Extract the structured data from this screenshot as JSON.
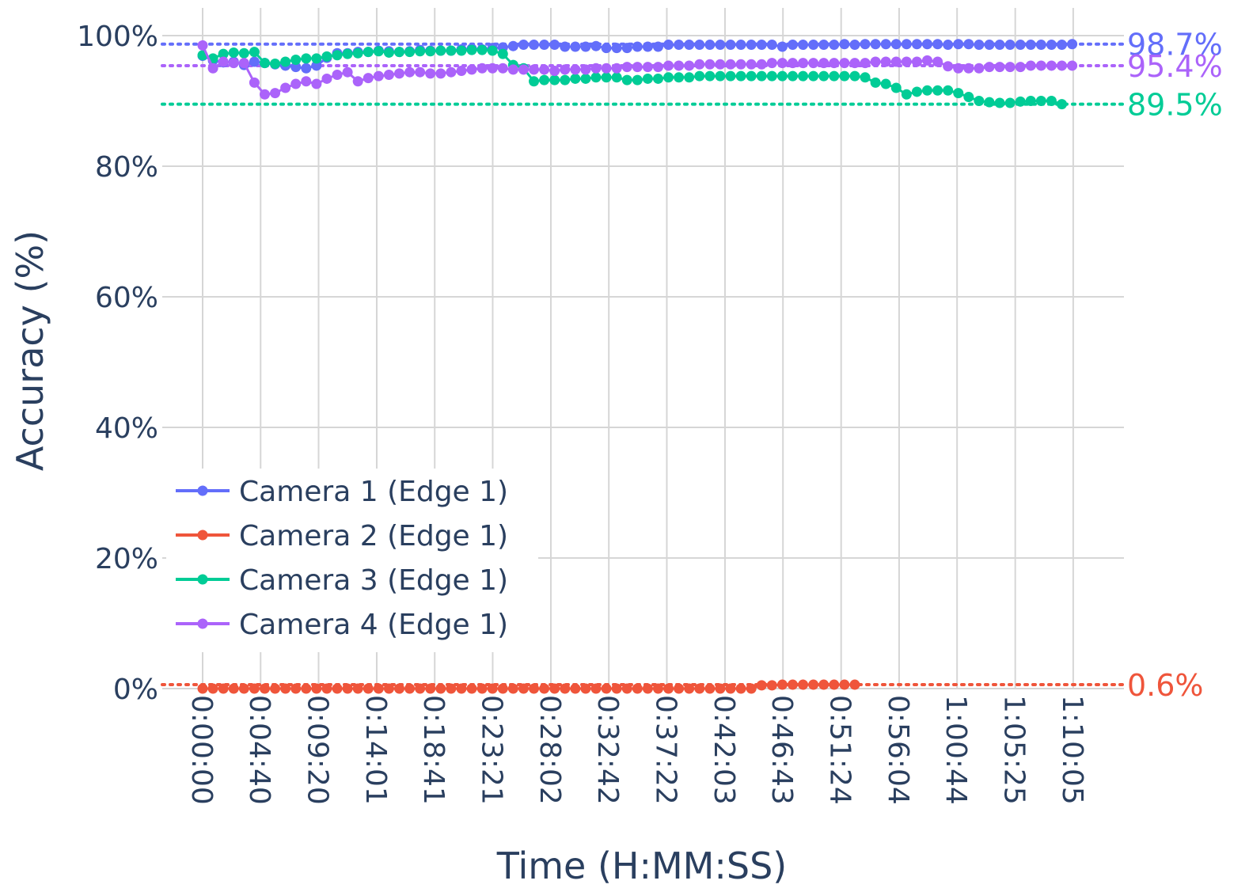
{
  "chart_data": {
    "type": "line",
    "title": "",
    "xlabel": "Time (H:MM:SS)",
    "ylabel": "Accuracy (%)",
    "ylim": [
      0,
      100
    ],
    "xlim_seconds": [
      -195,
      4450
    ],
    "y_ticks": [
      {
        "value": 0,
        "label": "0%"
      },
      {
        "value": 20,
        "label": "20%"
      },
      {
        "value": 40,
        "label": "40%"
      },
      {
        "value": 60,
        "label": "60%"
      },
      {
        "value": 80,
        "label": "80%"
      },
      {
        "value": 100,
        "label": "100%"
      }
    ],
    "x_ticks": [
      "0:00:00",
      "0:04:40",
      "0:09:20",
      "0:14:01",
      "0:18:41",
      "0:23:21",
      "0:28:02",
      "0:32:42",
      "0:37:22",
      "0:42:03",
      "0:46:43",
      "0:51:24",
      "0:56:04",
      "1:00:44",
      "1:05:25",
      "1:10:05"
    ],
    "grid": true,
    "legend_position": "lower-left",
    "series": [
      {
        "name": "Camera 1 (Edge 1)",
        "color": "#636efa",
        "final_label": "98.7%",
        "final_value": 98.7,
        "x": [
          "0:00:00",
          "0:00:50",
          "0:01:40",
          "0:02:30",
          "0:03:20",
          "0:04:10",
          "0:05:00",
          "0:05:50",
          "0:06:40",
          "0:07:30",
          "0:08:20",
          "0:09:10",
          "0:10:00",
          "0:10:50",
          "0:11:40",
          "0:12:30",
          "0:13:20",
          "0:14:10",
          "0:15:00",
          "0:15:50",
          "0:16:40",
          "0:17:30",
          "0:18:20",
          "0:19:10",
          "0:20:00",
          "0:20:50",
          "0:21:40",
          "0:22:30",
          "0:23:20",
          "0:24:10",
          "0:25:00",
          "0:25:50",
          "0:26:40",
          "0:27:30",
          "0:28:20",
          "0:29:10",
          "0:30:00",
          "0:30:50",
          "0:31:40",
          "0:32:30",
          "0:33:20",
          "0:34:10",
          "0:35:00",
          "0:35:50",
          "0:36:40",
          "0:37:30",
          "0:38:20",
          "0:39:10",
          "0:40:00",
          "0:40:50",
          "0:41:40",
          "0:42:30",
          "0:43:20",
          "0:44:10",
          "0:45:00",
          "0:45:50",
          "0:46:40",
          "0:47:30",
          "0:48:20",
          "0:49:10",
          "0:50:00",
          "0:50:50",
          "0:51:40",
          "0:52:30",
          "0:53:20",
          "0:54:10",
          "0:55:00",
          "0:55:50",
          "0:56:40",
          "0:57:30",
          "0:58:20",
          "0:59:10",
          "1:00:00",
          "1:00:50",
          "1:01:40",
          "1:02:30",
          "1:03:20",
          "1:04:10",
          "1:05:00",
          "1:05:50",
          "1:06:40",
          "1:07:30",
          "1:08:20",
          "1:09:10",
          "1:10:00"
        ],
        "values": [
          96.9,
          96.2,
          95.9,
          96.0,
          95.5,
          96.0,
          95.8,
          95.6,
          95.4,
          95.2,
          95.0,
          95.4,
          96.6,
          97.3,
          97.3,
          97.5,
          97.5,
          97.7,
          97.6,
          97.5,
          97.6,
          97.8,
          97.7,
          97.7,
          97.7,
          97.9,
          98.0,
          97.9,
          98.1,
          98.2,
          98.4,
          98.6,
          98.6,
          98.6,
          98.6,
          98.3,
          98.3,
          98.3,
          98.4,
          98.1,
          98.1,
          98.1,
          98.3,
          98.3,
          98.3,
          98.6,
          98.6,
          98.6,
          98.6,
          98.6,
          98.6,
          98.6,
          98.6,
          98.6,
          98.6,
          98.6,
          98.3,
          98.6,
          98.6,
          98.6,
          98.6,
          98.6,
          98.7,
          98.6,
          98.7,
          98.7,
          98.7,
          98.7,
          98.7,
          98.7,
          98.7,
          98.7,
          98.6,
          98.7,
          98.7,
          98.6,
          98.6,
          98.6,
          98.6,
          98.6,
          98.6,
          98.6,
          98.6,
          98.6,
          98.7
        ]
      },
      {
        "name": "Camera 2 (Edge 1)",
        "color": "#ef553b",
        "final_label": "0.6%",
        "final_value": 0.6,
        "x": [
          "0:00:00",
          "0:00:50",
          "0:01:40",
          "0:02:30",
          "0:03:20",
          "0:04:10",
          "0:05:00",
          "0:05:50",
          "0:06:40",
          "0:07:30",
          "0:08:20",
          "0:09:10",
          "0:10:00",
          "0:10:50",
          "0:11:40",
          "0:12:30",
          "0:13:20",
          "0:14:10",
          "0:15:00",
          "0:15:50",
          "0:16:40",
          "0:17:30",
          "0:18:20",
          "0:19:10",
          "0:20:00",
          "0:20:50",
          "0:21:40",
          "0:22:30",
          "0:23:20",
          "0:24:10",
          "0:25:00",
          "0:25:50",
          "0:26:40",
          "0:27:30",
          "0:28:20",
          "0:29:10",
          "0:30:00",
          "0:30:50",
          "0:31:40",
          "0:32:30",
          "0:33:20",
          "0:34:10",
          "0:35:00",
          "0:35:50",
          "0:36:40",
          "0:37:30",
          "0:38:20",
          "0:39:10",
          "0:40:00",
          "0:40:50",
          "0:41:40",
          "0:42:30",
          "0:43:20",
          "0:44:10",
          "0:45:00",
          "0:45:50",
          "0:46:40",
          "0:47:30",
          "0:48:20",
          "0:49:10",
          "0:50:00",
          "0:50:50",
          "0:51:40",
          "0:52:30"
        ],
        "values": [
          0,
          0,
          0,
          0,
          0,
          0,
          0,
          0,
          0,
          0,
          0,
          0,
          0,
          0,
          0,
          0,
          0,
          0,
          0,
          0,
          0,
          0,
          0,
          0,
          0,
          0,
          0,
          0,
          0,
          0,
          0,
          0,
          0,
          0,
          0,
          0,
          0,
          0,
          0,
          0,
          0,
          0,
          0,
          0,
          0,
          0,
          0,
          0,
          0,
          0,
          0,
          0,
          0,
          0,
          0.5,
          0.5,
          0.6,
          0.6,
          0.6,
          0.6,
          0.6,
          0.6,
          0.6,
          0.6
        ]
      },
      {
        "name": "Camera 3 (Edge 1)",
        "color": "#00cc96",
        "final_label": "89.5%",
        "final_value": 89.5,
        "x": [
          "0:00:00",
          "0:00:50",
          "0:01:40",
          "0:02:30",
          "0:03:20",
          "0:04:10",
          "0:05:00",
          "0:05:50",
          "0:06:40",
          "0:07:30",
          "0:08:20",
          "0:09:10",
          "0:10:00",
          "0:10:50",
          "0:11:40",
          "0:12:30",
          "0:13:20",
          "0:14:10",
          "0:15:00",
          "0:15:50",
          "0:16:40",
          "0:17:30",
          "0:18:20",
          "0:19:10",
          "0:20:00",
          "0:20:50",
          "0:21:40",
          "0:22:30",
          "0:23:20",
          "0:24:10",
          "0:25:00",
          "0:25:50",
          "0:26:40",
          "0:27:30",
          "0:28:20",
          "0:29:10",
          "0:30:00",
          "0:30:50",
          "0:31:40",
          "0:32:30",
          "0:33:20",
          "0:34:10",
          "0:35:00",
          "0:35:50",
          "0:36:40",
          "0:37:30",
          "0:38:20",
          "0:39:10",
          "0:40:00",
          "0:40:50",
          "0:41:40",
          "0:42:30",
          "0:43:20",
          "0:44:10",
          "0:45:00",
          "0:45:50",
          "0:46:40",
          "0:47:30",
          "0:48:20",
          "0:49:10",
          "0:50:00",
          "0:50:50",
          "0:51:40",
          "0:52:30",
          "0:53:20",
          "0:54:10",
          "0:55:00",
          "0:55:50",
          "0:56:40",
          "0:57:30",
          "0:58:20",
          "0:59:10",
          "1:00:00",
          "1:00:50",
          "1:01:40",
          "1:02:30",
          "1:03:20",
          "1:04:10",
          "1:05:00",
          "1:05:50",
          "1:06:40",
          "1:07:30",
          "1:08:20",
          "1:09:10"
        ],
        "values": [
          97.0,
          96.5,
          97.2,
          97.4,
          97.3,
          97.5,
          95.8,
          95.7,
          96.0,
          96.3,
          96.5,
          96.5,
          96.8,
          97.0,
          97.2,
          97.3,
          97.5,
          97.6,
          97.4,
          97.5,
          97.5,
          97.6,
          97.6,
          97.7,
          97.7,
          97.7,
          97.8,
          97.8,
          97.7,
          97.2,
          95.5,
          95.0,
          93.0,
          93.2,
          93.2,
          93.2,
          93.4,
          93.4,
          93.6,
          93.6,
          93.6,
          93.2,
          93.2,
          93.4,
          93.4,
          93.6,
          93.6,
          93.6,
          93.8,
          93.8,
          93.8,
          93.8,
          93.8,
          93.8,
          93.8,
          93.8,
          93.8,
          93.8,
          93.8,
          93.8,
          93.8,
          93.8,
          93.8,
          93.8,
          93.6,
          92.8,
          92.6,
          92.0,
          91.0,
          91.4,
          91.6,
          91.6,
          91.6,
          91.2,
          90.6,
          90.0,
          89.8,
          89.7,
          89.7,
          89.9,
          90.0,
          90.0,
          90.0,
          89.5
        ]
      },
      {
        "name": "Camera 4 (Edge 1)",
        "color": "#ab63fa",
        "final_label": "95.4%",
        "final_value": 95.4,
        "x": [
          "0:00:00",
          "0:00:50",
          "0:01:40",
          "0:02:30",
          "0:03:20",
          "0:04:10",
          "0:05:00",
          "0:05:50",
          "0:06:40",
          "0:07:30",
          "0:08:20",
          "0:09:10",
          "0:10:00",
          "0:10:50",
          "0:11:40",
          "0:12:30",
          "0:13:20",
          "0:14:10",
          "0:15:00",
          "0:15:50",
          "0:16:40",
          "0:17:30",
          "0:18:20",
          "0:19:10",
          "0:20:00",
          "0:20:50",
          "0:21:40",
          "0:22:30",
          "0:23:20",
          "0:24:10",
          "0:25:00",
          "0:25:50",
          "0:26:40",
          "0:27:30",
          "0:28:20",
          "0:29:10",
          "0:30:00",
          "0:30:50",
          "0:31:40",
          "0:32:30",
          "0:33:20",
          "0:34:10",
          "0:35:00",
          "0:35:50",
          "0:36:40",
          "0:37:30",
          "0:38:20",
          "0:39:10",
          "0:40:00",
          "0:40:50",
          "0:41:40",
          "0:42:30",
          "0:43:20",
          "0:44:10",
          "0:45:00",
          "0:45:50",
          "0:46:40",
          "0:47:30",
          "0:48:20",
          "0:49:10",
          "0:50:00",
          "0:50:50",
          "0:51:40",
          "0:52:30",
          "0:53:20",
          "0:54:10",
          "0:55:00",
          "0:55:50",
          "0:56:40",
          "0:57:30",
          "0:58:20",
          "0:59:10",
          "1:00:00",
          "1:00:50",
          "1:01:40",
          "1:02:30",
          "1:03:20",
          "1:04:10",
          "1:05:00",
          "1:05:50",
          "1:06:40",
          "1:07:30",
          "1:08:20",
          "1:09:10",
          "1:10:00"
        ],
        "values": [
          98.5,
          95.0,
          96.0,
          95.8,
          95.8,
          92.8,
          91.0,
          91.2,
          92.0,
          92.6,
          93.0,
          92.6,
          93.4,
          94.0,
          94.4,
          93.0,
          93.5,
          93.8,
          94.0,
          94.2,
          94.4,
          94.4,
          94.2,
          94.2,
          94.4,
          94.6,
          94.8,
          95.0,
          95.0,
          95.0,
          94.8,
          94.8,
          94.8,
          94.8,
          94.6,
          94.8,
          94.8,
          94.8,
          95.0,
          95.0,
          95.0,
          95.2,
          95.2,
          95.2,
          95.2,
          95.4,
          95.4,
          95.4,
          95.6,
          95.6,
          95.6,
          95.6,
          95.6,
          95.6,
          95.6,
          95.8,
          95.8,
          95.8,
          95.8,
          95.8,
          95.8,
          95.8,
          95.8,
          95.8,
          95.8,
          96.0,
          96.0,
          96.0,
          96.0,
          96.0,
          96.2,
          96.0,
          95.3,
          95.0,
          95.0,
          95.0,
          95.2,
          95.2,
          95.2,
          95.2,
          95.4,
          95.4,
          95.4,
          95.4,
          95.4
        ]
      }
    ]
  }
}
